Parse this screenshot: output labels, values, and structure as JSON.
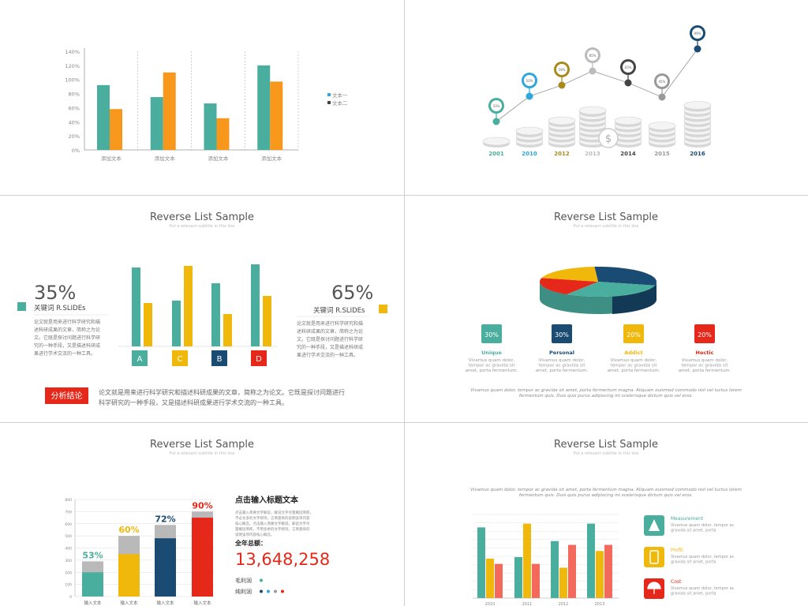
{
  "colors": {
    "teal": "#4aae9f",
    "orange": "#f7981d",
    "yellow": "#f1b80c",
    "navy": "#194b73",
    "red": "#e5281a",
    "gray": "#b9b9b9",
    "blue": "#2fa6dc"
  },
  "slide1": {
    "legend": [
      "文本一",
      "文本二"
    ],
    "chart_data": {
      "type": "bar",
      "categories": [
        "添加文本",
        "添加文本",
        "添加文本",
        "添加文本"
      ],
      "series": [
        {
          "name": "文本一",
          "values": [
            0.92,
            0.75,
            0.66,
            1.2
          ]
        },
        {
          "name": "文本二",
          "values": [
            0.58,
            1.1,
            0.45,
            0.97
          ]
        }
      ],
      "ylim": [
        0,
        1.4
      ],
      "yticks": [
        "0%",
        "20%",
        "40%",
        "60%",
        "80%",
        "100%",
        "120%",
        "140%"
      ]
    }
  },
  "slide2": {
    "chart_data": {
      "type": "line",
      "categories": [
        "2001",
        "2010",
        "2012",
        "2013",
        "2014",
        "2015",
        "2016"
      ],
      "values": [
        33,
        50,
        59,
        85,
        83,
        45,
        99
      ],
      "labels": [
        "33%",
        "50%",
        "59%",
        "85%",
        "83%",
        "45%",
        "99%"
      ],
      "pin_colors": [
        "#4aae9f",
        "#2fa6dc",
        "#a88b1e",
        "#bbbbbb",
        "#444444",
        "#999999",
        "#194b73"
      ],
      "stack_heights": [
        1,
        3,
        5,
        7,
        5,
        4,
        8
      ]
    }
  },
  "slide3": {
    "title": "Reverse List Sample",
    "subtitle": "Put a relevant subtitle in this line",
    "left_pct": "35%",
    "left_label": "关键词 R.SLIDEs",
    "left_text": [
      "论文就是用来进行科学研究和描",
      "述科研成果的文章，简称之为论",
      "文。它既是探讨问题进行科学研",
      "究的一种手段，又是描述科研成",
      "果进行学术交流的一种工具。"
    ],
    "right_pct": "65%",
    "right_label": "关键词 R.SLIDEs",
    "right_text": [
      "论文就是用来进行科学研究和描",
      "述科研成果的文章，简称之为论",
      "文。它既是探讨问题进行科学研",
      "究的一种手段，又是描述科研成",
      "果进行学术交流的一种工具。"
    ],
    "badge": "分析结论",
    "conclusion": [
      "论文就是用来进行科学研究和描述科研成果的文章，简称之为论文。它既是探讨问题进行",
      "科学研究的一种手段，又是描述科研成果进行学术交流的一种工具。"
    ],
    "chart_data": {
      "type": "bar",
      "categories": [
        "A",
        "C",
        "B",
        "D"
      ],
      "series": [
        {
          "values": [
            100,
            58,
            80,
            104
          ]
        },
        {
          "values": [
            55,
            102,
            41,
            64
          ]
        }
      ],
      "ylim": [
        0,
        110
      ],
      "label_colors": [
        "#4aae9f",
        "#f1b80c",
        "#194b73",
        "#e5281a"
      ]
    }
  },
  "slide4": {
    "title": "Reverse List Sample",
    "subtitle": "Put a relevant subtitle in this line",
    "items": [
      {
        "pct": "30%",
        "name": "Unique",
        "color": "#4aae9f"
      },
      {
        "pct": "30%",
        "name": "Personal",
        "color": "#194b73"
      },
      {
        "pct": "20%",
        "name": "Addict",
        "color": "#f1b80c"
      },
      {
        "pct": "20%",
        "name": "Hectic",
        "color": "#e5281a"
      }
    ],
    "item_text": [
      "Vivamus quam dolor,",
      "tempor ac gravida sit",
      "amet, porta fermentum."
    ],
    "footer": [
      "Vivamus quam dolor, tempor ac gravida sit amet, porta fermentum magna. Aliquam euismod commodo nisl vel luctus lorem",
      "fermentum quis. Duis quis purus adipiscing mi scelerisque dictum quis vel eros."
    ],
    "chart_data": {
      "type": "pie",
      "labels": [
        "Unique",
        "Personal",
        "Addict",
        "Hectic"
      ],
      "values": [
        30,
        30,
        20,
        20
      ],
      "colors": [
        "#4aae9f",
        "#194b73",
        "#f1b80c",
        "#e5281a"
      ]
    }
  },
  "slide5": {
    "title": "Reverse List Sample",
    "subtitle": "Put a relevant subtitle in this line",
    "heading": "点击输入标题文本",
    "desc": [
      "点击输入简要文字解说，解说文字尽量概括简练，",
      "不必太多的文字修饰，言简意赅的说明该项内容",
      "核心概念。点击输入简要文字解说，解说文字尽",
      "量概括简练，不用多余的文字修饰，言简意赅的",
      "说明该项内容核心概念。"
    ],
    "total_label": "全年总额：",
    "total": "13,648,258",
    "legend": [
      {
        "label": "毛利润",
        "dots": [
          "#4aae9f"
        ]
      },
      {
        "label": "纯利润",
        "dots": [
          "#194b73",
          "#2fa6dc",
          "#999999",
          "#e5281a"
        ]
      }
    ],
    "chart_data": {
      "type": "bar",
      "categories": [
        "输入文本",
        "输入文本",
        "输入文本",
        "输入文本"
      ],
      "values": [
        200,
        350,
        480,
        650
      ],
      "totals": [
        290,
        500,
        590,
        700
      ],
      "labels": [
        "53%",
        "60%",
        "72%",
        "90%"
      ],
      "colors": [
        "#4aae9f",
        "#f1b80c",
        "#194b73",
        "#e5281a"
      ],
      "ylim": [
        0,
        800
      ],
      "yticks": [
        "0",
        "100",
        "200",
        "300",
        "400",
        "500",
        "600",
        "700",
        "800"
      ]
    }
  },
  "slide6": {
    "title": "Reverse List Sample",
    "subtitle": "Put a relevant subtitle in this line",
    "intro": [
      "Vivamus quam dolor, tempor ac gravida sit amet, porta fermentum magna. Aliquam euismod commodo nisl vel luctus lorem",
      "fermentum quis. Duis quis purus adipiscing mi scelerisque dictum quis vel eros."
    ],
    "items": [
      {
        "name": "Measurement",
        "icon": "cone-icon",
        "color": "#4aae9f"
      },
      {
        "name": "Profit",
        "icon": "phone-icon",
        "color": "#f1b80c"
      },
      {
        "name": "Cost",
        "icon": "umbrella-icon",
        "color": "#e5281a"
      }
    ],
    "item_text": [
      "Vivamus quam dolor, tempor ac",
      "gravida sit amet, porta"
    ],
    "chart_data": {
      "type": "bar",
      "categories": [
        "2010",
        "2011",
        "2012",
        "2013"
      ],
      "series": [
        {
          "values": [
            93,
            54,
            75,
            98
          ]
        },
        {
          "values": [
            52,
            98,
            40,
            62
          ]
        },
        {
          "values": [
            45,
            45,
            70,
            70
          ]
        }
      ],
      "colors": [
        "#4aae9f",
        "#f1b80c",
        "#f36a5d"
      ],
      "ylim": [
        0,
        110
      ]
    }
  }
}
